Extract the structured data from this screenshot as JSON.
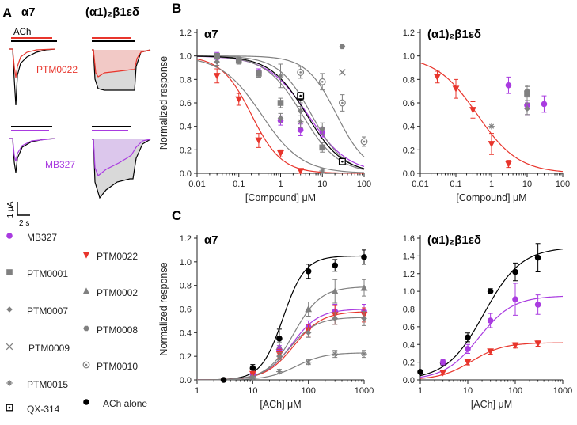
{
  "panels": {
    "a": {
      "letter": "A",
      "col_titles": [
        "α7",
        "(α1)₂β1εδ"
      ],
      "ach_label": "ACh",
      "trace_labels": [
        {
          "text": "PTM0022",
          "color": "#e8352c"
        },
        {
          "text": "MB327",
          "color": "#a93be0"
        }
      ],
      "scale_y": "1 μA",
      "scale_x": "2 s"
    },
    "b": {
      "letter": "B"
    },
    "c": {
      "letter": "C"
    }
  },
  "colors": {
    "MB327": "#a93be0",
    "PTM0022": "#e8352c",
    "gray": "#808080",
    "ACh": "#000000"
  },
  "legend": [
    {
      "name": "MB327",
      "marker": "circle",
      "color": "#a93be0"
    },
    {
      "name": "PTM0022",
      "marker": "triangle-down",
      "color": "#e8352c"
    },
    {
      "name": "PTM0001",
      "marker": "square",
      "color": "#808080"
    },
    {
      "name": "PTM0002",
      "marker": "triangle-up",
      "color": "#808080"
    },
    {
      "name": "PTM0007",
      "marker": "diamond",
      "color": "#808080"
    },
    {
      "name": "PTM0008",
      "marker": "hexagon",
      "color": "#808080"
    },
    {
      "name": "PTM0009",
      "marker": "x",
      "color": "#808080"
    },
    {
      "name": "PTM0010",
      "marker": "circle-dot",
      "color": "#808080"
    },
    {
      "name": "PTM0015",
      "marker": "asterisk",
      "color": "#808080"
    },
    {
      "name": "ACh alone",
      "marker": "circle",
      "color": "#000000"
    },
    {
      "name": "QX-314",
      "marker": "square-dot",
      "color": "#000000"
    }
  ],
  "chart_data": [
    {
      "id": "b-alpha7",
      "type": "scatter",
      "title": "α7",
      "xlabel": "[Compound] μM",
      "ylabel": "Normalized response",
      "xscale": "log",
      "xlim": [
        0.01,
        100
      ],
      "ylim": [
        0,
        1.2
      ],
      "xticks": [
        "0.01",
        "0.1",
        "1",
        "10",
        "100"
      ],
      "yticks": [
        "0.0",
        "0.2",
        "0.4",
        "0.6",
        "0.8",
        "1.0",
        "1.2"
      ],
      "series": [
        {
          "name": "MB327",
          "x": [
            0.03,
            0.3,
            1,
            3,
            10,
            30
          ],
          "y": [
            1.0,
            0.86,
            0.45,
            0.37,
            0.35,
            0.1
          ],
          "err": [
            0.03,
            0.03,
            0.04,
            0.05,
            0.04,
            0.02
          ]
        },
        {
          "name": "PTM0022",
          "x": [
            0.03,
            0.1,
            0.3,
            1,
            3
          ],
          "y": [
            0.83,
            0.63,
            0.28,
            0.17,
            0.02
          ],
          "err": [
            0.06,
            0.05,
            0.06,
            0.03,
            0.02
          ]
        },
        {
          "name": "PTM0001",
          "x": [
            0.03,
            0.1,
            0.3,
            1,
            3,
            10,
            30
          ],
          "y": [
            1.0,
            0.96,
            0.85,
            0.6,
            0.64,
            0.22,
            0.1
          ],
          "err": [
            0.02,
            0.03,
            0.03,
            0.04,
            0.04,
            0.04,
            0.02
          ]
        },
        {
          "name": "PTM0007",
          "x": [
            0.03,
            0.3,
            1,
            3,
            10,
            30
          ],
          "y": [
            0.95,
            0.85,
            0.47,
            0.53,
            0.38,
            0.1
          ],
          "err": [
            0.03,
            0.03,
            0.04,
            0.04,
            0.05,
            0.02
          ]
        },
        {
          "name": "PTM0008",
          "x": [
            30
          ],
          "y": [
            1.08
          ],
          "err": [
            0
          ]
        },
        {
          "name": "PTM0009",
          "x": [
            30
          ],
          "y": [
            0.86
          ],
          "err": [
            0
          ]
        },
        {
          "name": "PTM0010",
          "x": [
            3,
            10,
            30,
            100
          ],
          "y": [
            0.86,
            0.78,
            0.6,
            0.27
          ],
          "err": [
            0.05,
            0.07,
            0.07,
            0.04
          ]
        },
        {
          "name": "PTM0015",
          "x": [
            1,
            3,
            10
          ],
          "y": [
            0.83,
            0.44,
            0.02
          ],
          "err": [
            0.1,
            0.05,
            0.02
          ]
        },
        {
          "name": "ACh alone",
          "x": [
            3
          ],
          "y": [
            0.65
          ],
          "err": [
            0.03
          ]
        },
        {
          "name": "QX-314",
          "x": [
            3,
            30
          ],
          "y": [
            0.66,
            0.1
          ],
          "err": [
            0.03,
            0.02
          ]
        }
      ],
      "fits": [
        {
          "color": "#e8352c",
          "ic50": 0.2,
          "n": 1.2
        },
        {
          "color": "#a93be0",
          "ic50": 4.5,
          "n": 0.9
        },
        {
          "color": "#808080",
          "ic50": 0.35,
          "n": 0.9
        },
        {
          "color": "#808080",
          "ic50": 3.3,
          "n": 1.0
        },
        {
          "color": "#808080",
          "ic50": 5.5,
          "n": 1.1
        },
        {
          "color": "#808080",
          "ic50": 22,
          "n": 1.2
        },
        {
          "color": "#000000",
          "ic50": 4.2,
          "n": 1.0
        }
      ]
    },
    {
      "id": "b-muscle",
      "type": "scatter",
      "title": "(α1)₂β1εδ",
      "xlabel": "[Compound] μM",
      "ylabel": "",
      "xscale": "log",
      "xlim": [
        0.01,
        100
      ],
      "ylim": [
        0,
        1.2
      ],
      "xticks": [
        "0.01",
        "0.1",
        "1",
        "10",
        "100"
      ],
      "yticks": [
        "0.0",
        "0.2",
        "0.4",
        "0.6",
        "0.8",
        "1.0",
        "1.2"
      ],
      "series": [
        {
          "name": "PTM0022",
          "x": [
            0.03,
            0.1,
            0.3,
            1,
            3
          ],
          "y": [
            0.82,
            0.72,
            0.54,
            0.25,
            0.08
          ],
          "err": [
            0.05,
            0.08,
            0.07,
            0.09,
            0.03
          ]
        },
        {
          "name": "MB327",
          "x": [
            3,
            10,
            30
          ],
          "y": [
            0.75,
            0.58,
            0.59
          ],
          "err": [
            0.07,
            0.08,
            0.07
          ]
        },
        {
          "name": "PTM0001",
          "x": [
            10
          ],
          "y": [
            0.68
          ],
          "err": [
            0.06
          ]
        },
        {
          "name": "PTM0007",
          "x": [
            10
          ],
          "y": [
            0.55
          ],
          "err": [
            0.05
          ]
        },
        {
          "name": "PTM0008",
          "x": [
            10
          ],
          "y": [
            0.7
          ],
          "err": [
            0.05
          ]
        },
        {
          "name": "PTM0015",
          "x": [
            1
          ],
          "y": [
            0.4
          ],
          "err": [
            0
          ]
        }
      ],
      "fits": [
        {
          "color": "#e8352c",
          "ic50": 0.4,
          "n": 0.75
        }
      ]
    },
    {
      "id": "c-alpha7",
      "type": "scatter",
      "title": "α7",
      "xlabel": "[ACh] μM",
      "ylabel": "Normalized response",
      "xscale": "log",
      "xlim": [
        1,
        1000
      ],
      "ylim": [
        0,
        1.2
      ],
      "xticks": [
        "1",
        "10",
        "100",
        "1000"
      ],
      "yticks": [
        "0.0",
        "0.2",
        "0.4",
        "0.6",
        "0.8",
        "1.0",
        "1.2"
      ],
      "series": [
        {
          "name": "ACh alone",
          "x": [
            3,
            10,
            30,
            100,
            300,
            1000
          ],
          "y": [
            0.0,
            0.1,
            0.35,
            0.92,
            0.97,
            1.04
          ],
          "err": [
            0.01,
            0.03,
            0.08,
            0.06,
            0.05,
            0.06
          ]
        },
        {
          "name": "PTM0002",
          "x": [
            10,
            30,
            100,
            300,
            1000
          ],
          "y": [
            0.05,
            0.28,
            0.6,
            0.75,
            0.78
          ],
          "err": [
            0.02,
            0.04,
            0.06,
            0.1,
            0.07
          ]
        },
        {
          "name": "MB327",
          "x": [
            10,
            30,
            100,
            300,
            1000
          ],
          "y": [
            0.05,
            0.25,
            0.45,
            0.58,
            0.58
          ],
          "err": [
            0.02,
            0.04,
            0.05,
            0.06,
            0.06
          ]
        },
        {
          "name": "PTM0022",
          "x": [
            10,
            30,
            100,
            300,
            1000
          ],
          "y": [
            0.05,
            0.22,
            0.42,
            0.55,
            0.55
          ],
          "err": [
            0.02,
            0.04,
            0.05,
            0.08,
            0.06
          ]
        },
        {
          "name": "PTM0007",
          "x": [
            30,
            100,
            300,
            1000
          ],
          "y": [
            0.2,
            0.4,
            0.52,
            0.52
          ],
          "err": [
            0.03,
            0.04,
            0.05,
            0.06
          ]
        },
        {
          "name": "PTM0015",
          "x": [
            10,
            30,
            100,
            300,
            1000
          ],
          "y": [
            0.02,
            0.07,
            0.15,
            0.22,
            0.22
          ],
          "err": [
            0.01,
            0.02,
            0.02,
            0.03,
            0.03
          ]
        }
      ],
      "fits": [
        {
          "color": "#000000",
          "top": 1.05,
          "ec50": 35,
          "n": 2.2
        },
        {
          "color": "#808080",
          "top": 0.79,
          "ec50": 55,
          "n": 1.8
        },
        {
          "color": "#a93be0",
          "top": 0.6,
          "ec50": 50,
          "n": 1.8
        },
        {
          "color": "#e8352c",
          "top": 0.58,
          "ec50": 55,
          "n": 1.7
        },
        {
          "color": "#808080",
          "top": 0.53,
          "ec50": 45,
          "n": 1.8
        },
        {
          "color": "#808080",
          "top": 0.23,
          "ec50": 60,
          "n": 1.7
        }
      ]
    },
    {
      "id": "c-muscle",
      "type": "scatter",
      "title": "(α1)₂β1εδ",
      "xlabel": "[ACh] μM",
      "ylabel": "",
      "xscale": "log",
      "xlim": [
        1,
        1000
      ],
      "ylim": [
        0,
        1.6
      ],
      "xticks": [
        "1",
        "10",
        "100",
        "1000"
      ],
      "yticks": [
        "0.0",
        "0.2",
        "0.4",
        "0.6",
        "0.8",
        "1.0",
        "1.2",
        "1.4",
        "1.6"
      ],
      "series": [
        {
          "name": "ACh alone",
          "x": [
            1,
            3,
            10,
            30,
            100,
            300
          ],
          "y": [
            0.09,
            0.19,
            0.48,
            1.0,
            1.22,
            1.38
          ],
          "err": [
            0.02,
            0.03,
            0.05,
            0.03,
            0.1,
            0.16
          ]
        },
        {
          "name": "MB327",
          "x": [
            3,
            10,
            30,
            100,
            300
          ],
          "y": [
            0.2,
            0.35,
            0.67,
            0.91,
            0.85
          ],
          "err": [
            0.03,
            0.05,
            0.08,
            0.18,
            0.11
          ]
        },
        {
          "name": "PTM0022",
          "x": [
            3,
            10,
            30,
            100,
            300
          ],
          "y": [
            0.08,
            0.2,
            0.32,
            0.39,
            0.41
          ],
          "err": [
            0.02,
            0.03,
            0.03,
            0.03,
            0.03
          ]
        }
      ],
      "fits": [
        {
          "color": "#000000",
          "top": 1.5,
          "ec50": 22,
          "n": 1.1
        },
        {
          "color": "#a93be0",
          "top": 0.95,
          "ec50": 17,
          "n": 1.2
        },
        {
          "color": "#e8352c",
          "top": 0.42,
          "ec50": 12,
          "n": 1.3
        }
      ]
    }
  ]
}
